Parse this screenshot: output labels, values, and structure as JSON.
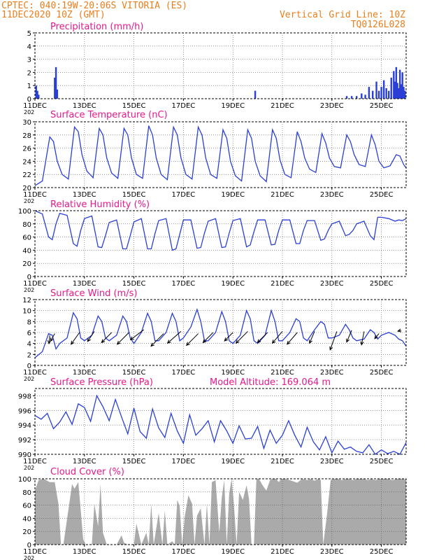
{
  "header": {
    "line1": "CPTEC:  040:19W-20:06S  VITORIA (ES)",
    "line2": "11DEC2020 10Z (GMT)",
    "right1": "Vertical Grid Line: 10Z",
    "right2": "TQ0126L028"
  },
  "colors": {
    "header": "#e87f1e",
    "title": "#e6198c",
    "line": "#2a3fd6",
    "cloud": "#aaaaaa",
    "wind_arrow": "#000000"
  },
  "x_axis": {
    "day_range": [
      11,
      26
    ],
    "tick_days": [
      11,
      13,
      15,
      17,
      19,
      21,
      23,
      25
    ],
    "tick_labels": [
      "11DEC",
      "13DEC",
      "15DEC",
      "17DEC",
      "19DEC",
      "21DEC",
      "23DEC",
      "25DEC"
    ],
    "year_label": "202"
  },
  "chart_data": [
    {
      "id": "precip",
      "type": "bar",
      "title": "Precipitation (mm/h)",
      "ylim": [
        0,
        5
      ],
      "yticks": [
        0,
        1,
        2,
        3,
        4,
        5
      ],
      "x": [
        11.05,
        11.1,
        11.15,
        11.8,
        11.85,
        11.9,
        19.9,
        23.6,
        23.8,
        24.0,
        24.2,
        24.35,
        24.5,
        24.65,
        24.8,
        24.9,
        25.0,
        25.1,
        25.2,
        25.3,
        25.4,
        25.5,
        25.55,
        25.6,
        25.65,
        25.7,
        25.75,
        25.8,
        25.85,
        25.9,
        25.95
      ],
      "values": [
        1.0,
        0.6,
        0.3,
        1.6,
        2.4,
        0.7,
        0.6,
        0.2,
        0.2,
        0.2,
        0.4,
        0.3,
        0.9,
        0.6,
        1.3,
        0.6,
        0.9,
        1.4,
        0.8,
        0.6,
        1.6,
        2.1,
        1.3,
        2.4,
        1.2,
        0.8,
        2.2,
        1.1,
        2.0,
        0.9,
        0.6
      ]
    },
    {
      "id": "temp",
      "type": "line",
      "title": "Surface Temperature (nC)",
      "ylim": [
        20,
        30
      ],
      "yticks": [
        20,
        22,
        24,
        26,
        28,
        30
      ],
      "x": [
        11.0,
        11.3,
        11.6,
        11.75,
        11.9,
        12.1,
        12.35,
        12.6,
        12.75,
        12.9,
        13.1,
        13.35,
        13.6,
        13.75,
        13.9,
        14.1,
        14.35,
        14.6,
        14.75,
        14.9,
        15.1,
        15.35,
        15.6,
        15.75,
        15.9,
        16.1,
        16.35,
        16.6,
        16.75,
        16.9,
        17.1,
        17.35,
        17.6,
        17.75,
        17.9,
        18.1,
        18.35,
        18.6,
        18.75,
        18.9,
        19.1,
        19.35,
        19.6,
        19.75,
        19.9,
        20.1,
        20.35,
        20.6,
        20.75,
        20.9,
        21.1,
        21.35,
        21.6,
        21.75,
        21.9,
        22.1,
        22.35,
        22.6,
        22.75,
        22.9,
        23.1,
        23.35,
        23.6,
        23.75,
        23.9,
        24.1,
        24.35,
        24.6,
        24.75,
        24.9,
        25.1,
        25.35,
        25.6,
        25.75,
        25.9,
        26.0
      ],
      "y": [
        20.3,
        21.0,
        27.7,
        27.0,
        24.0,
        22.0,
        21.3,
        29.2,
        28.5,
        25.0,
        22.5,
        21.5,
        29.0,
        28.0,
        24.5,
        22.2,
        21.4,
        29.0,
        28.0,
        24.5,
        22.0,
        21.4,
        29.4,
        28.0,
        24.5,
        22.0,
        21.2,
        29.2,
        28.0,
        24.5,
        22.0,
        21.3,
        29.2,
        28.0,
        24.5,
        22.0,
        21.4,
        28.8,
        27.5,
        24.0,
        21.8,
        21.0,
        28.8,
        27.5,
        24.0,
        21.8,
        20.9,
        28.8,
        27.5,
        24.2,
        22.0,
        21.5,
        28.5,
        27.0,
        24.5,
        22.8,
        22.3,
        28.2,
        26.8,
        24.5,
        23.2,
        23.0,
        28.0,
        27.0,
        25.0,
        23.5,
        23.2,
        28.0,
        26.5,
        24.0,
        23.0,
        23.3,
        25.0,
        24.8,
        23.5,
        23.0
      ]
    },
    {
      "id": "rh",
      "type": "line",
      "title": "Relative Humidity (%)",
      "ylim": [
        0,
        100
      ],
      "yticks": [
        0,
        20,
        40,
        60,
        80,
        100
      ],
      "x": [
        11.0,
        11.3,
        11.55,
        11.7,
        11.85,
        12.0,
        12.3,
        12.55,
        12.7,
        12.85,
        13.0,
        13.3,
        13.55,
        13.7,
        13.85,
        14.0,
        14.3,
        14.55,
        14.7,
        14.85,
        15.0,
        15.3,
        15.55,
        15.7,
        15.85,
        16.0,
        16.3,
        16.55,
        16.7,
        16.85,
        17.0,
        17.3,
        17.55,
        17.7,
        17.85,
        18.0,
        18.3,
        18.55,
        18.7,
        18.85,
        19.0,
        19.3,
        19.55,
        19.7,
        19.85,
        20.0,
        20.3,
        20.55,
        20.7,
        20.85,
        21.0,
        21.3,
        21.55,
        21.7,
        21.85,
        22.0,
        22.3,
        22.55,
        22.7,
        22.85,
        23.0,
        23.3,
        23.55,
        23.7,
        23.85,
        24.0,
        24.3,
        24.55,
        24.7,
        24.85,
        25.0,
        25.3,
        25.55,
        25.7,
        25.85,
        26.0
      ],
      "y": [
        100,
        95,
        60,
        56,
        80,
        96,
        93,
        50,
        46,
        70,
        88,
        92,
        45,
        44,
        62,
        82,
        86,
        42,
        42,
        62,
        83,
        88,
        42,
        42,
        65,
        85,
        88,
        40,
        42,
        64,
        86,
        86,
        43,
        44,
        66,
        84,
        88,
        44,
        45,
        66,
        85,
        88,
        45,
        48,
        68,
        86,
        86,
        48,
        49,
        70,
        86,
        86,
        50,
        50,
        70,
        85,
        85,
        55,
        57,
        70,
        80,
        84,
        62,
        64,
        70,
        80,
        84,
        62,
        56,
        90,
        90,
        88,
        84,
        86,
        85,
        88
      ]
    },
    {
      "id": "wind",
      "type": "line",
      "title": "Surface Wind (m/s)",
      "ylim": [
        0,
        12
      ],
      "yticks": [
        0,
        2,
        4,
        6,
        8,
        10,
        12
      ],
      "x": [
        11.0,
        11.3,
        11.55,
        11.7,
        11.85,
        12.0,
        12.3,
        12.55,
        12.7,
        12.85,
        13.0,
        13.3,
        13.55,
        13.7,
        13.85,
        14.0,
        14.3,
        14.55,
        14.7,
        14.85,
        15.0,
        15.3,
        15.55,
        15.7,
        15.85,
        16.0,
        16.3,
        16.55,
        16.7,
        16.85,
        17.0,
        17.3,
        17.55,
        17.7,
        17.85,
        18.0,
        18.3,
        18.55,
        18.7,
        18.85,
        19.0,
        19.3,
        19.55,
        19.7,
        19.85,
        20.0,
        20.3,
        20.55,
        20.7,
        20.85,
        21.0,
        21.3,
        21.55,
        21.7,
        21.85,
        22.0,
        22.3,
        22.55,
        22.7,
        22.85,
        23.0,
        23.3,
        23.55,
        23.7,
        23.85,
        24.0,
        24.3,
        24.55,
        24.7,
        24.85,
        25.0,
        25.3,
        25.55,
        25.7,
        25.85,
        26.0
      ],
      "y": [
        1.4,
        2.5,
        5.8,
        5.5,
        3.0,
        4.0,
        5.0,
        9.6,
        8.5,
        5.0,
        4.5,
        5.5,
        9.0,
        8.0,
        5.0,
        4.5,
        5.5,
        9.0,
        8.0,
        5.0,
        4.0,
        6.0,
        9.5,
        8.0,
        4.5,
        4.5,
        6.0,
        9.5,
        8.0,
        4.5,
        5.0,
        7.0,
        10.2,
        8.0,
        4.5,
        4.5,
        6.0,
        9.8,
        8.0,
        4.5,
        4.0,
        5.5,
        10.0,
        8.5,
        4.5,
        4.0,
        5.5,
        10.0,
        8.0,
        4.5,
        4.5,
        6.0,
        8.5,
        8.0,
        5.0,
        4.5,
        6.5,
        8.0,
        7.5,
        5.0,
        5.0,
        5.5,
        7.5,
        6.5,
        5.0,
        4.5,
        4.8,
        6.5,
        6.0,
        4.8,
        5.5,
        6.0,
        5.5,
        4.8,
        4.5,
        3.5
      ],
      "arrows": {
        "x": [
          11.6,
          11.8,
          12.8,
          13.4,
          14.1,
          14.8,
          15.4,
          16.2,
          16.9,
          17.6,
          18.2,
          19.0,
          19.6,
          20.4,
          21.0,
          21.6,
          22.3,
          23.2,
          23.8,
          24.3,
          24.9,
          25.8
        ],
        "base_y": [
          5.5,
          5.8,
          6.0,
          6.2,
          6.0,
          6.0,
          6.5,
          5.8,
          6.2,
          5.8,
          6.0,
          6.0,
          6.2,
          6.0,
          6.2,
          6.0,
          6.2,
          6.2,
          6.4,
          6.2,
          5.8,
          6.4
        ],
        "u": [
          -0.1,
          -0.5,
          -1.0,
          -0.8,
          -1.2,
          -1.4,
          -1.6,
          -1.5,
          -1.6,
          -1.4,
          -1.2,
          -1.0,
          -1.4,
          -1.2,
          -1.2,
          -1.2,
          -0.6,
          -0.8,
          -0.6,
          -0.3,
          -0.5,
          -0.4
        ],
        "v": [
          -1.0,
          -0.9,
          -1.4,
          -1.2,
          -1.2,
          -1.4,
          -1.2,
          -1.5,
          -1.4,
          -1.4,
          -1.2,
          -1.0,
          -1.4,
          -1.2,
          -1.4,
          -1.4,
          -1.4,
          -2.2,
          -1.4,
          -1.6,
          -0.6,
          -0.1
        ]
      }
    },
    {
      "id": "pres",
      "type": "line",
      "title": "Surface Pressure (hPa)",
      "subtitle": "Model Altitude: 169.064 m",
      "ylim": [
        990,
        999
      ],
      "yticks": [
        990,
        992,
        994,
        996,
        998
      ],
      "x": [
        11.0,
        11.25,
        11.5,
        11.75,
        12.0,
        12.25,
        12.5,
        12.75,
        13.0,
        13.25,
        13.5,
        13.75,
        14.0,
        14.25,
        14.5,
        14.75,
        15.0,
        15.25,
        15.5,
        15.75,
        16.0,
        16.25,
        16.5,
        16.75,
        17.0,
        17.25,
        17.5,
        17.75,
        18.0,
        18.25,
        18.5,
        18.75,
        19.0,
        19.25,
        19.5,
        19.75,
        20.0,
        20.25,
        20.5,
        20.75,
        21.0,
        21.25,
        21.5,
        21.75,
        22.0,
        22.25,
        22.5,
        22.75,
        23.0,
        23.25,
        23.5,
        23.75,
        24.0,
        24.25,
        24.5,
        24.75,
        25.0,
        25.25,
        25.5,
        25.75,
        26.0
      ],
      "y": [
        995.3,
        994.8,
        995.6,
        993.5,
        994.4,
        995.8,
        994.1,
        996.9,
        996.4,
        994.5,
        998.0,
        996.5,
        994.6,
        997.5,
        995.1,
        992.8,
        996.3,
        993.1,
        992.2,
        996.2,
        993.6,
        992.3,
        995.6,
        993.2,
        991.5,
        995.4,
        992.6,
        993.5,
        994.6,
        991.7,
        994.6,
        993.2,
        991.5,
        993.9,
        992.1,
        992.2,
        993.8,
        990.8,
        993.3,
        991.5,
        992.6,
        994.6,
        992.6,
        991.0,
        993.7,
        991.7,
        990.6,
        992.4,
        990.2,
        991.8,
        990.7,
        991.0,
        990.4,
        990.2,
        991.3,
        990.0,
        990.6,
        990.1,
        990.4,
        990.0,
        991.6
      ]
    },
    {
      "id": "cloud",
      "type": "area",
      "title": "Cloud Cover (%)",
      "ylim": [
        0,
        100
      ],
      "yticks": [
        0,
        20,
        40,
        60,
        80,
        100
      ],
      "x": [
        11.0,
        11.15,
        11.35,
        11.6,
        11.8,
        11.95,
        12.05,
        12.15,
        12.5,
        12.6,
        12.75,
        12.85,
        12.95,
        13.05,
        13.3,
        13.4,
        13.55,
        13.65,
        13.75,
        13.9,
        14.0,
        14.15,
        14.3,
        14.5,
        14.6,
        14.75,
        14.85,
        15.0,
        15.1,
        15.3,
        15.5,
        15.6,
        15.7,
        15.8,
        16.0,
        16.15,
        16.25,
        16.35,
        16.55,
        16.65,
        16.75,
        16.85,
        16.95,
        17.05,
        17.2,
        17.35,
        17.45,
        17.55,
        17.7,
        17.85,
        17.95,
        18.05,
        18.15,
        18.3,
        18.45,
        18.55,
        18.65,
        18.75,
        18.85,
        18.95,
        19.05,
        19.15,
        19.25,
        19.4,
        19.55,
        19.65,
        19.75,
        19.85,
        19.95,
        20.05,
        20.2,
        20.35,
        20.5,
        20.6,
        20.75,
        20.85,
        20.95,
        21.1,
        21.3,
        21.45,
        21.6,
        21.8,
        22.0,
        22.15,
        22.3,
        22.45,
        22.55,
        22.65,
        22.8,
        22.95,
        23.1,
        23.25,
        23.4,
        23.55,
        23.7,
        23.85,
        24.0,
        24.15,
        24.3,
        24.45,
        24.6,
        24.75,
        24.9,
        25.05,
        25.25,
        25.45,
        25.65,
        25.85,
        26.0
      ],
      "y": [
        82,
        98,
        100,
        95,
        95,
        62,
        0,
        0,
        92,
        85,
        95,
        52,
        8,
        0,
        0,
        62,
        28,
        92,
        18,
        0,
        0,
        0,
        0,
        14,
        3,
        0,
        0,
        0,
        32,
        0,
        18,
        0,
        62,
        0,
        48,
        0,
        52,
        0,
        5,
        0,
        68,
        58,
        0,
        42,
        75,
        62,
        0,
        44,
        55,
        0,
        62,
        0,
        95,
        98,
        18,
        72,
        98,
        0,
        78,
        100,
        55,
        0,
        80,
        68,
        90,
        70,
        0,
        0,
        100,
        100,
        90,
        82,
        98,
        100,
        100,
        95,
        100,
        100,
        98,
        96,
        94,
        100,
        98,
        100,
        97,
        100,
        98,
        0,
        45,
        98,
        100,
        100,
        98,
        100,
        100,
        98,
        100,
        100,
        100,
        98,
        100,
        98,
        100,
        100,
        100,
        98,
        100,
        100,
        99
      ]
    }
  ]
}
